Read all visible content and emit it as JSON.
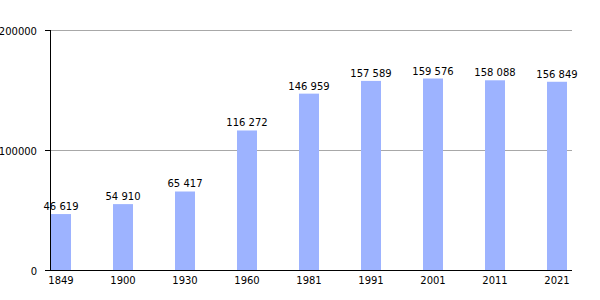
{
  "chart_data": {
    "type": "bar",
    "categories": [
      "1849",
      "1900",
      "1930",
      "1960",
      "1981",
      "1991",
      "2001",
      "2011",
      "2021"
    ],
    "values": [
      46619,
      54910,
      65417,
      116272,
      146959,
      157589,
      159576,
      158088,
      156849
    ],
    "value_labels": [
      "46 619",
      "54 910",
      "65 417",
      "116 272",
      "146 959",
      "157 589",
      "159 576",
      "158 088",
      "156 849"
    ],
    "color": "#9db3ff",
    "ylim": [
      0,
      200000
    ],
    "yticks": [
      0,
      100000,
      200000
    ],
    "grid": true,
    "data_labels": true
  }
}
